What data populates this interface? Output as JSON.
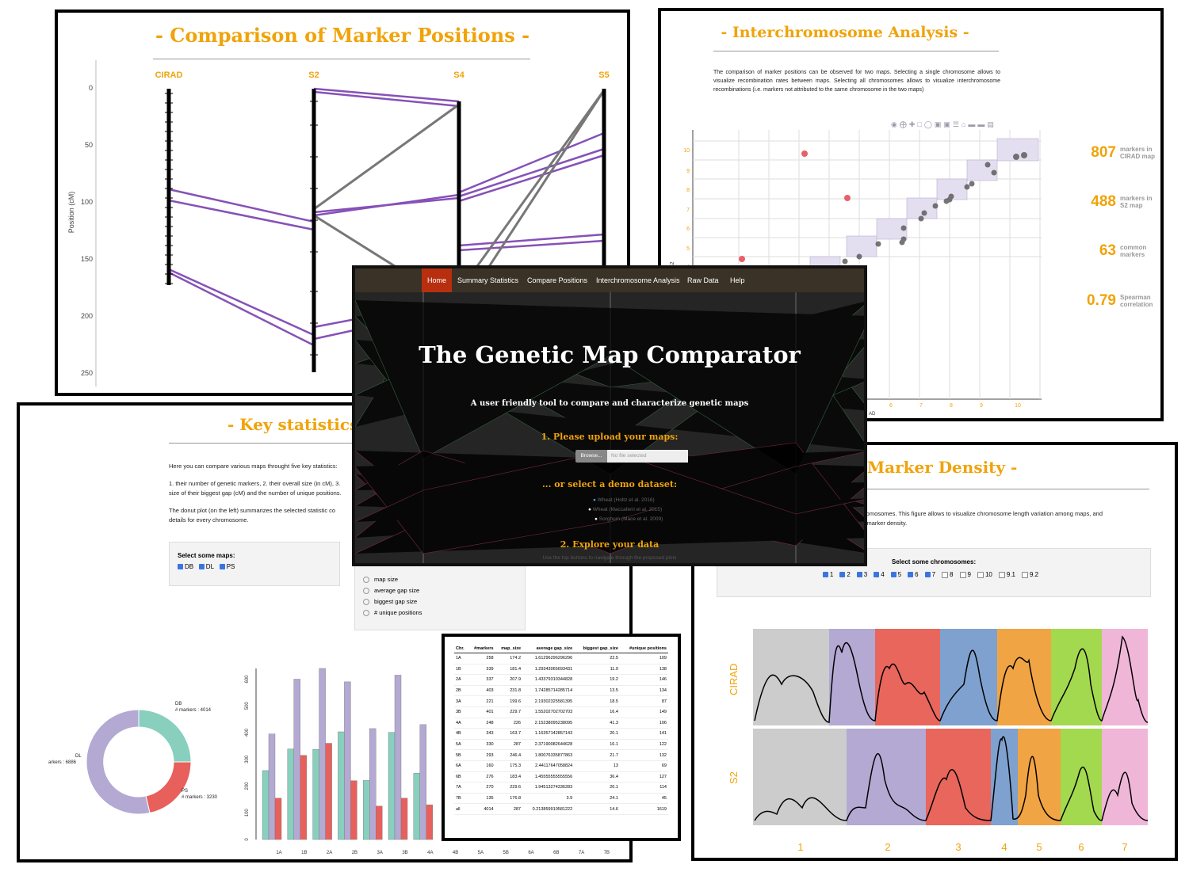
{
  "positions_panel": {
    "title": "- Comparison of Marker Positions -",
    "ylabel": "Position (cM)",
    "maps": [
      "CIRAD",
      "S2",
      "S4",
      "S5"
    ],
    "yticks": [
      "0",
      "50",
      "100",
      "150",
      "200",
      "250"
    ]
  },
  "inter_panel": {
    "title": "- Interchromosome Analysis -",
    "description": "The comparison of marker positions can be observed for two maps. Selecting a single chromosome allows to visualize recombination rates between maps. Selecting all chromosomes allows to visualize interchromosome recombinations (i.e. markers not attributed to the same chromosome in the two maps)",
    "yaxis_label": "S2",
    "xaxis_label": "AD",
    "yticks": [
      "10",
      "9",
      "8",
      "7",
      "6",
      "5",
      "4"
    ],
    "xticks": [
      "6",
      "7",
      "8",
      "9",
      "10"
    ],
    "stats": [
      {
        "value": "807",
        "label": "markers in CIRAD map"
      },
      {
        "value": "488",
        "label": "markers in S2 map"
      },
      {
        "value": "63",
        "label": "common markers"
      },
      {
        "value": "0.79",
        "label": "Spearman correlation"
      }
    ]
  },
  "keystats_panel": {
    "title": "- Key statistics (s",
    "intro": "Here you can compare various maps throught five key statistics:",
    "list": "1. their number of genetic markers, 2. their overall size (in cM), 3.",
    "list2": "size of their biggest gap (cM) and the number of unique positions.",
    "donut_note": "The donut plot (on the left) summarizes the selected statistic co",
    "donut_note2": "details for every chromosome.",
    "select_maps_label": "Select some maps:",
    "maps": [
      "DB",
      "DL",
      "PS"
    ],
    "stat_options": [
      "map size",
      "average gap size",
      "biggest gap size",
      "# unique positions"
    ],
    "donut": [
      {
        "label": "DB",
        "sub": "# markers : 4014"
      },
      {
        "label": "DL",
        "sub": "arkers : 6886"
      },
      {
        "label": "PS",
        "sub": "# markers : 3230"
      }
    ],
    "bar_yticks": [
      "600",
      "500",
      "400",
      "300",
      "200",
      "100",
      "0"
    ],
    "bar_xticks": [
      "1A",
      "1B",
      "2A",
      "2B",
      "3A",
      "3B",
      "4A",
      "4B",
      "5A",
      "5B",
      "6A",
      "6B",
      "7A",
      "7B"
    ],
    "colors": {
      "db": "#88cfbe",
      "dl": "#b3a9d3",
      "ps": "#e8605c"
    }
  },
  "table": {
    "headers": [
      "Chr.",
      "#markers",
      "map_size",
      "average gap_size",
      "biggest gap_size",
      "#unique positions"
    ],
    "rows": [
      [
        "1A",
        "258",
        "174.2",
        "1.61296296296296",
        "22.5",
        "109"
      ],
      [
        "1B",
        "339",
        "181.4",
        "1.29343065693431",
        "11.9",
        "138"
      ],
      [
        "2A",
        "337",
        "207.9",
        "1.43379310344828",
        "19.2",
        "146"
      ],
      [
        "2B",
        "403",
        "231.8",
        "1.74285714285714",
        "13.5",
        "134"
      ],
      [
        "3A",
        "221",
        "199.6",
        "2.19302325581395",
        "18.5",
        "87"
      ],
      [
        "3B",
        "401",
        "229.7",
        "1.55202702702703",
        "16.4",
        "149"
      ],
      [
        "4A",
        "248",
        "226",
        "2.15238095238095",
        "41.3",
        "106"
      ],
      [
        "4B",
        "343",
        "163.7",
        "1.16357142857143",
        "20.1",
        "141"
      ],
      [
        "5A",
        "330",
        "287",
        "2.37190082644628",
        "16.1",
        "122"
      ],
      [
        "5B",
        "293",
        "246.4",
        "1.80076335877863",
        "21.7",
        "132"
      ],
      [
        "6A",
        "160",
        "175.3",
        "2.44117647058824",
        "13",
        "69"
      ],
      [
        "6B",
        "276",
        "183.4",
        "1.45555555555556",
        "36.4",
        "127"
      ],
      [
        "7A",
        "270",
        "229.6",
        "1.94513274336283",
        "20.1",
        "114"
      ],
      [
        "7B",
        "135",
        "176.8",
        "3.9",
        "24.1",
        "45"
      ],
      [
        "all",
        "4014",
        "287",
        "0.213859910581222",
        "14.6",
        "1619"
      ]
    ]
  },
  "density_panel": {
    "title": "Marker Density -",
    "text1": "hromosomes. This figure allows to visualize chromosome length variation among maps, and",
    "text2": "ic marker density.",
    "select_label": "Select some chromosomes:",
    "chromosomes": [
      {
        "label": "1",
        "checked": true
      },
      {
        "label": "2",
        "checked": true
      },
      {
        "label": "3",
        "checked": true
      },
      {
        "label": "4",
        "checked": true
      },
      {
        "label": "5",
        "checked": true
      },
      {
        "label": "6",
        "checked": true
      },
      {
        "label": "7",
        "checked": true
      },
      {
        "label": "8",
        "checked": false
      },
      {
        "label": "9",
        "checked": false
      },
      {
        "label": "10",
        "checked": false
      },
      {
        "label": "9.1",
        "checked": false
      },
      {
        "label": "9.2",
        "checked": false
      }
    ],
    "rows": [
      "CIRAD",
      "S2"
    ],
    "xticks": [
      "1",
      "2",
      "3",
      "4",
      "5",
      "6",
      "7"
    ]
  },
  "home": {
    "nav": [
      "Home",
      "Summary Statistics",
      "Compare Positions",
      "Interchromosome Analysis",
      "Raw Data",
      "Help"
    ],
    "title": "The Genetic Map Comparator",
    "subtitle": "A user friendly tool to compare and characterize genetic maps",
    "step1": "1. Please upload your maps:",
    "browse": "Browse...",
    "file_placeholder": "No file selected",
    "step_demo": "... or select a demo dataset:",
    "demos": [
      "Wheat (Holtz et al. 2016)",
      "Wheat (Maccaferri et al. 2015)",
      "Sorghum (Mace et al. 2009)"
    ],
    "step2": "2. Explore your data",
    "step2_sub": "Use the top buttons to navigate through the proposed plots"
  }
}
